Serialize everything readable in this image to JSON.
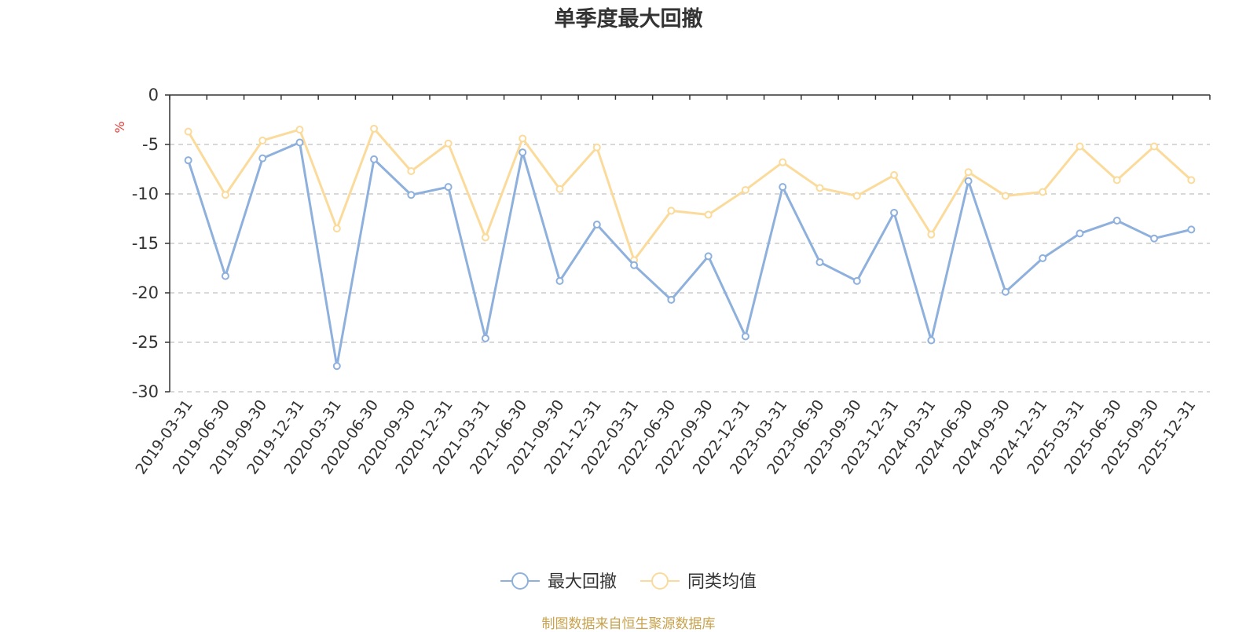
{
  "chart_data": {
    "type": "line",
    "title": "单季度最大回撤",
    "ylabel": "%",
    "xlabel": "",
    "ylim": [
      -30,
      0
    ],
    "yticks": [
      0,
      -5,
      -10,
      -15,
      -20,
      -25,
      -30
    ],
    "grid": true,
    "legend_position": "bottom-center",
    "categories": [
      "2019-03-31",
      "2019-06-30",
      "2019-09-30",
      "2019-12-31",
      "2020-03-31",
      "2020-06-30",
      "2020-09-30",
      "2020-12-31",
      "2021-03-31",
      "2021-06-30",
      "2021-09-30",
      "2021-12-31",
      "2022-03-31",
      "2022-06-30",
      "2022-09-30",
      "2022-12-31",
      "2023-03-31",
      "2023-06-30",
      "2023-09-30",
      "2023-12-31",
      "2024-03-31",
      "2024-06-30",
      "2024-09-30",
      "2024-12-31",
      "2025-03-31",
      "2025-06-30",
      "2025-09-30",
      "2025-12-31"
    ],
    "series": [
      {
        "name": "最大回撤",
        "color": "#8eb0dc",
        "values": [
          -6.6,
          -18.3,
          -6.4,
          -4.8,
          -27.4,
          -6.5,
          -10.1,
          -9.3,
          -24.6,
          -5.8,
          -18.8,
          -13.1,
          -17.2,
          -20.7,
          -16.3,
          -24.4,
          -9.3,
          -16.9,
          -18.8,
          -11.9,
          -24.8,
          -8.7,
          -19.9,
          -16.5,
          -14.0,
          -12.7,
          -14.5,
          -13.6
        ]
      },
      {
        "name": "同类均值",
        "color": "#fbdb9b",
        "values": [
          -3.7,
          -10.1,
          -4.6,
          -3.5,
          -13.5,
          -3.4,
          -7.7,
          -4.9,
          -14.4,
          -4.4,
          -9.5,
          -5.3,
          -16.7,
          -11.7,
          -12.1,
          -9.6,
          -6.8,
          -9.4,
          -10.2,
          -8.1,
          -14.1,
          -7.8,
          -10.2,
          -9.8,
          -5.2,
          -8.6,
          -5.2,
          -8.6
        ]
      }
    ]
  },
  "source_text": "制图数据来自恒生聚源数据库",
  "colors": {
    "axis": "#333333",
    "grid": "#cccccc",
    "ylabel": "#e53935",
    "source": "#c8a24c"
  }
}
